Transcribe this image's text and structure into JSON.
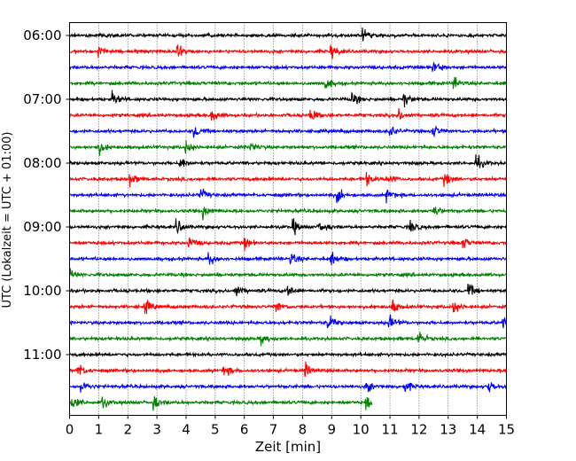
{
  "chart_data": {
    "type": "line",
    "subtype": "helicorder",
    "xlabel": "Zeit  [min]",
    "ylabel": "UTC (Lokalzeit = UTC + 01:00)",
    "xlim": [
      0,
      15
    ],
    "x_ticks": [
      "0",
      "1",
      "2",
      "3",
      "4",
      "5",
      "6",
      "7",
      "8",
      "9",
      "10",
      "11",
      "12",
      "13",
      "14",
      "15"
    ],
    "y_ticks": [
      "06:00",
      "07:00",
      "08:00",
      "09:00",
      "10:00",
      "11:00"
    ],
    "trace_interval_min": 15,
    "grid": "vertical dotted",
    "trace_colors": [
      "#000000",
      "#ff0000",
      "#0000ff",
      "#008000"
    ],
    "last_trace_end_min": 10.4,
    "traces": [
      {
        "start": "06:00",
        "events": [
          10.1
        ]
      },
      {
        "start": "06:15",
        "events": [
          1.0,
          3.7,
          9.0
        ]
      },
      {
        "start": "06:30",
        "events": [
          12.5
        ]
      },
      {
        "start": "06:45",
        "events": [
          8.8,
          13.2
        ]
      },
      {
        "start": "07:00",
        "events": [
          1.5,
          9.7,
          11.5
        ]
      },
      {
        "start": "07:15",
        "events": [
          4.9,
          8.3,
          11.3
        ]
      },
      {
        "start": "07:30",
        "events": [
          4.3,
          11.0,
          12.5
        ]
      },
      {
        "start": "07:45",
        "events": [
          1.0,
          4.0,
          6.2
        ]
      },
      {
        "start": "08:00",
        "events": [
          3.8,
          14.0
        ]
      },
      {
        "start": "08:15",
        "events": [
          2.1,
          10.2,
          10.9,
          12.9
        ]
      },
      {
        "start": "08:30",
        "events": [
          4.5,
          9.2,
          10.9
        ]
      },
      {
        "start": "08:45",
        "events": [
          4.6,
          12.5
        ]
      },
      {
        "start": "09:00",
        "events": [
          3.7,
          7.7,
          8.6,
          11.7
        ]
      },
      {
        "start": "09:15",
        "events": [
          4.1,
          6.0,
          13.5
        ]
      },
      {
        "start": "09:30",
        "events": [
          4.8,
          7.6,
          9.0
        ]
      },
      {
        "start": "09:45",
        "events": [
          0.0
        ]
      },
      {
        "start": "10:00",
        "events": [
          5.7,
          7.5,
          13.7
        ]
      },
      {
        "start": "10:15",
        "events": [
          2.6,
          7.1,
          11.1,
          13.2
        ]
      },
      {
        "start": "10:30",
        "events": [
          8.9,
          11.0,
          14.9
        ]
      },
      {
        "start": "10:45",
        "events": [
          6.6,
          12.0
        ]
      },
      {
        "start": "11:00",
        "events": []
      },
      {
        "start": "11:15",
        "events": [
          0.3,
          5.3,
          8.1
        ]
      },
      {
        "start": "11:30",
        "events": [
          0.4,
          10.2,
          11.5,
          14.4
        ]
      },
      {
        "start": "11:45",
        "events": [
          0.1,
          1.1,
          2.9,
          10.2
        ]
      }
    ]
  }
}
